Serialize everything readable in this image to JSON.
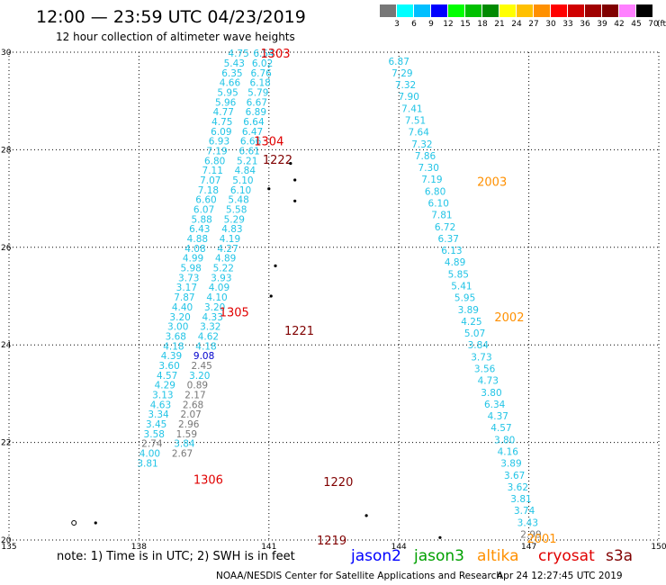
{
  "header": {
    "title": "12:00 — 23:59 UTC 04/23/2019",
    "subtitle": "12 hour collection of altimeter wave heights"
  },
  "legend": {
    "unit": "(ft)",
    "bins": [
      {
        "label": "3",
        "color": "#777777"
      },
      {
        "label": "6",
        "color": "#00ffff"
      },
      {
        "label": "9",
        "color": "#00bfff"
      },
      {
        "label": "12",
        "color": "#0000ff"
      },
      {
        "label": "15",
        "color": "#00ff00"
      },
      {
        "label": "18",
        "color": "#00c000"
      },
      {
        "label": "21",
        "color": "#008a00"
      },
      {
        "label": "24",
        "color": "#ffff00"
      },
      {
        "label": "27",
        "color": "#ffc000"
      },
      {
        "label": "30",
        "color": "#ff9000"
      },
      {
        "label": "33",
        "color": "#ff0000"
      },
      {
        "label": "36",
        "color": "#d00000"
      },
      {
        "label": "39",
        "color": "#a00000"
      },
      {
        "label": "42",
        "color": "#800000"
      },
      {
        "label": "45",
        "color": "#ff80ff"
      },
      {
        "label": "70",
        "color": "#000000"
      }
    ]
  },
  "chart_data": {
    "type": "scatter",
    "xlim": [
      135,
      150
    ],
    "ylim": [
      20,
      30
    ],
    "x_ticks": [
      "135",
      "138",
      "141",
      "144",
      "147",
      "150"
    ],
    "y_ticks": [
      "20",
      "22",
      "24",
      "26",
      "28",
      "30"
    ],
    "grid": true,
    "tracks": [
      {
        "name": "track-1",
        "points": [
          [
            "4.75",
            140.3,
            29.98
          ],
          [
            "6.54",
            140.88,
            29.98
          ],
          [
            "5.43",
            140.2,
            29.78
          ],
          [
            "6.02",
            140.85,
            29.78
          ],
          [
            "6.35",
            140.15,
            29.58
          ],
          [
            "6.76",
            140.82,
            29.58
          ],
          [
            "4.66",
            140.1,
            29.38
          ],
          [
            "6.18",
            140.8,
            29.38
          ],
          [
            "5.95",
            140.05,
            29.18
          ],
          [
            "5.79",
            140.75,
            29.18
          ],
          [
            "5.96",
            140.0,
            28.98
          ],
          [
            "6.67",
            140.72,
            28.98
          ],
          [
            "4.77",
            139.95,
            28.78
          ],
          [
            "6.89",
            140.7,
            28.78
          ],
          [
            "4.75",
            139.92,
            28.58
          ],
          [
            "6.64",
            140.65,
            28.58
          ],
          [
            "6.09",
            139.9,
            28.38
          ],
          [
            "6.47",
            140.62,
            28.38
          ],
          [
            "6.93",
            139.85,
            28.18
          ],
          [
            "6.66",
            140.58,
            28.18
          ],
          [
            "7.19",
            139.8,
            27.98
          ],
          [
            "6.61",
            140.55,
            27.98
          ],
          [
            "6.80",
            139.75,
            27.78
          ],
          [
            "5.21",
            140.5,
            27.78
          ],
          [
            "7.11",
            139.7,
            27.58
          ],
          [
            "4.84",
            140.45,
            27.58
          ],
          [
            "7.07",
            139.65,
            27.38
          ],
          [
            "5.10",
            140.4,
            27.38
          ],
          [
            "7.18",
            139.6,
            27.18
          ],
          [
            "6.10",
            140.35,
            27.18
          ],
          [
            "6.60",
            139.55,
            26.98
          ],
          [
            "5.48",
            140.3,
            26.98
          ],
          [
            "6.07",
            139.5,
            26.78
          ],
          [
            "5.58",
            140.25,
            26.78
          ],
          [
            "5.88",
            139.45,
            26.58
          ],
          [
            "5.29",
            140.2,
            26.58
          ],
          [
            "6.43",
            139.4,
            26.38
          ],
          [
            "4.83",
            140.15,
            26.38
          ],
          [
            "4.88",
            139.35,
            26.18
          ],
          [
            "4.19",
            140.1,
            26.18
          ],
          [
            "4.08",
            139.3,
            25.98
          ],
          [
            "4.27",
            140.05,
            25.98
          ],
          [
            "4.99",
            139.25,
            25.78
          ],
          [
            "4.89",
            140.0,
            25.78
          ],
          [
            "5.98",
            139.2,
            25.58
          ],
          [
            "5.22",
            139.95,
            25.58
          ],
          [
            "3.73",
            139.15,
            25.38
          ],
          [
            "3.93",
            139.9,
            25.38
          ],
          [
            "3.17",
            139.1,
            25.18
          ],
          [
            "4.09",
            139.85,
            25.18
          ],
          [
            "7.87",
            139.05,
            24.98
          ],
          [
            "4.10",
            139.8,
            24.98
          ],
          [
            "4.40",
            139.0,
            24.78
          ],
          [
            "3.20",
            139.75,
            24.78
          ],
          [
            "3.20",
            138.95,
            24.58
          ],
          [
            "4.33",
            139.7,
            24.58
          ],
          [
            "3.00",
            138.9,
            24.38
          ],
          [
            "3.32",
            139.65,
            24.38
          ],
          [
            "3.68",
            138.85,
            24.18
          ],
          [
            "4.62",
            139.6,
            24.18
          ],
          [
            "4.18",
            138.8,
            23.98
          ],
          [
            "4.18",
            139.55,
            23.98
          ],
          [
            "4.39",
            138.75,
            23.78
          ],
          [
            "9.08",
            139.5,
            23.78
          ],
          [
            "3.60",
            138.7,
            23.58
          ],
          [
            "2.45",
            139.45,
            23.58
          ],
          [
            "4.57",
            138.65,
            23.38
          ],
          [
            "3.20",
            139.4,
            23.38
          ],
          [
            "4.29",
            138.6,
            23.18
          ],
          [
            "0.89",
            139.35,
            23.18
          ],
          [
            "3.13",
            138.55,
            22.98
          ],
          [
            "2.17",
            139.3,
            22.98
          ],
          [
            "4.63",
            138.5,
            22.78
          ],
          [
            "2.68",
            139.25,
            22.78
          ],
          [
            "3.34",
            138.45,
            22.58
          ],
          [
            "2.07",
            139.2,
            22.58
          ],
          [
            "3.45",
            138.4,
            22.38
          ],
          [
            "2.96",
            139.15,
            22.38
          ],
          [
            "3.58",
            138.35,
            22.18
          ],
          [
            "1.59",
            139.1,
            22.18
          ],
          [
            "2.74",
            138.3,
            21.98
          ],
          [
            "3.84",
            139.05,
            21.98
          ],
          [
            "4.00",
            138.25,
            21.78
          ],
          [
            "2.67",
            139.0,
            21.78
          ],
          [
            "3.81",
            138.2,
            21.58
          ]
        ]
      }
    ],
    "track_labels_right": [
      "6.87",
      "7.29",
      "7.32",
      "7.90",
      "7.41",
      "7.51",
      "7.64",
      "7.32",
      "7.86",
      "7.30",
      "7.19",
      "6.80",
      "6.10",
      "7.81",
      "6.72",
      "6.37",
      "6.13",
      "4.89",
      "5.85",
      "5.41",
      "5.95",
      "3.89",
      "4.25",
      "5.07",
      "3.84",
      "3.73",
      "3.56",
      "4.73",
      "3.80",
      "6.34",
      "4.37",
      "4.57",
      "3.80",
      "4.16",
      "3.89",
      "3.67",
      "3.62",
      "3.81",
      "3.74",
      "3.43",
      "2.99"
    ],
    "time_labels": [
      {
        "text": "1303",
        "color": "#e00000"
      },
      {
        "text": "1304",
        "color": "#e00000"
      },
      {
        "text": "1222",
        "color": "#800000"
      },
      {
        "text": "2003",
        "color": "#ff9000"
      },
      {
        "text": "1305",
        "color": "#e00000"
      },
      {
        "text": "1221",
        "color": "#800000"
      },
      {
        "text": "2002",
        "color": "#ff9000"
      },
      {
        "text": "1306",
        "color": "#e00000"
      },
      {
        "text": "1220",
        "color": "#800000"
      },
      {
        "text": "1219",
        "color": "#800000"
      },
      {
        "text": "2001",
        "color": "#ff9000"
      }
    ]
  },
  "footer": {
    "note": "note: 1) Time is in UTC; 2) SWH is in feet",
    "credit": "NOAA/NESDIS Center for Satellite Applications and Research",
    "timestamp": "Apr 24 12:27:45 UTC 2019",
    "satellites": [
      {
        "name": "jason2",
        "color": "#0000ff"
      },
      {
        "name": "jason3",
        "color": "#00a000"
      },
      {
        "name": "altika",
        "color": "#ff9000"
      },
      {
        "name": "cryosat",
        "color": "#e00000"
      },
      {
        "name": "s3a",
        "color": "#800000"
      }
    ]
  }
}
